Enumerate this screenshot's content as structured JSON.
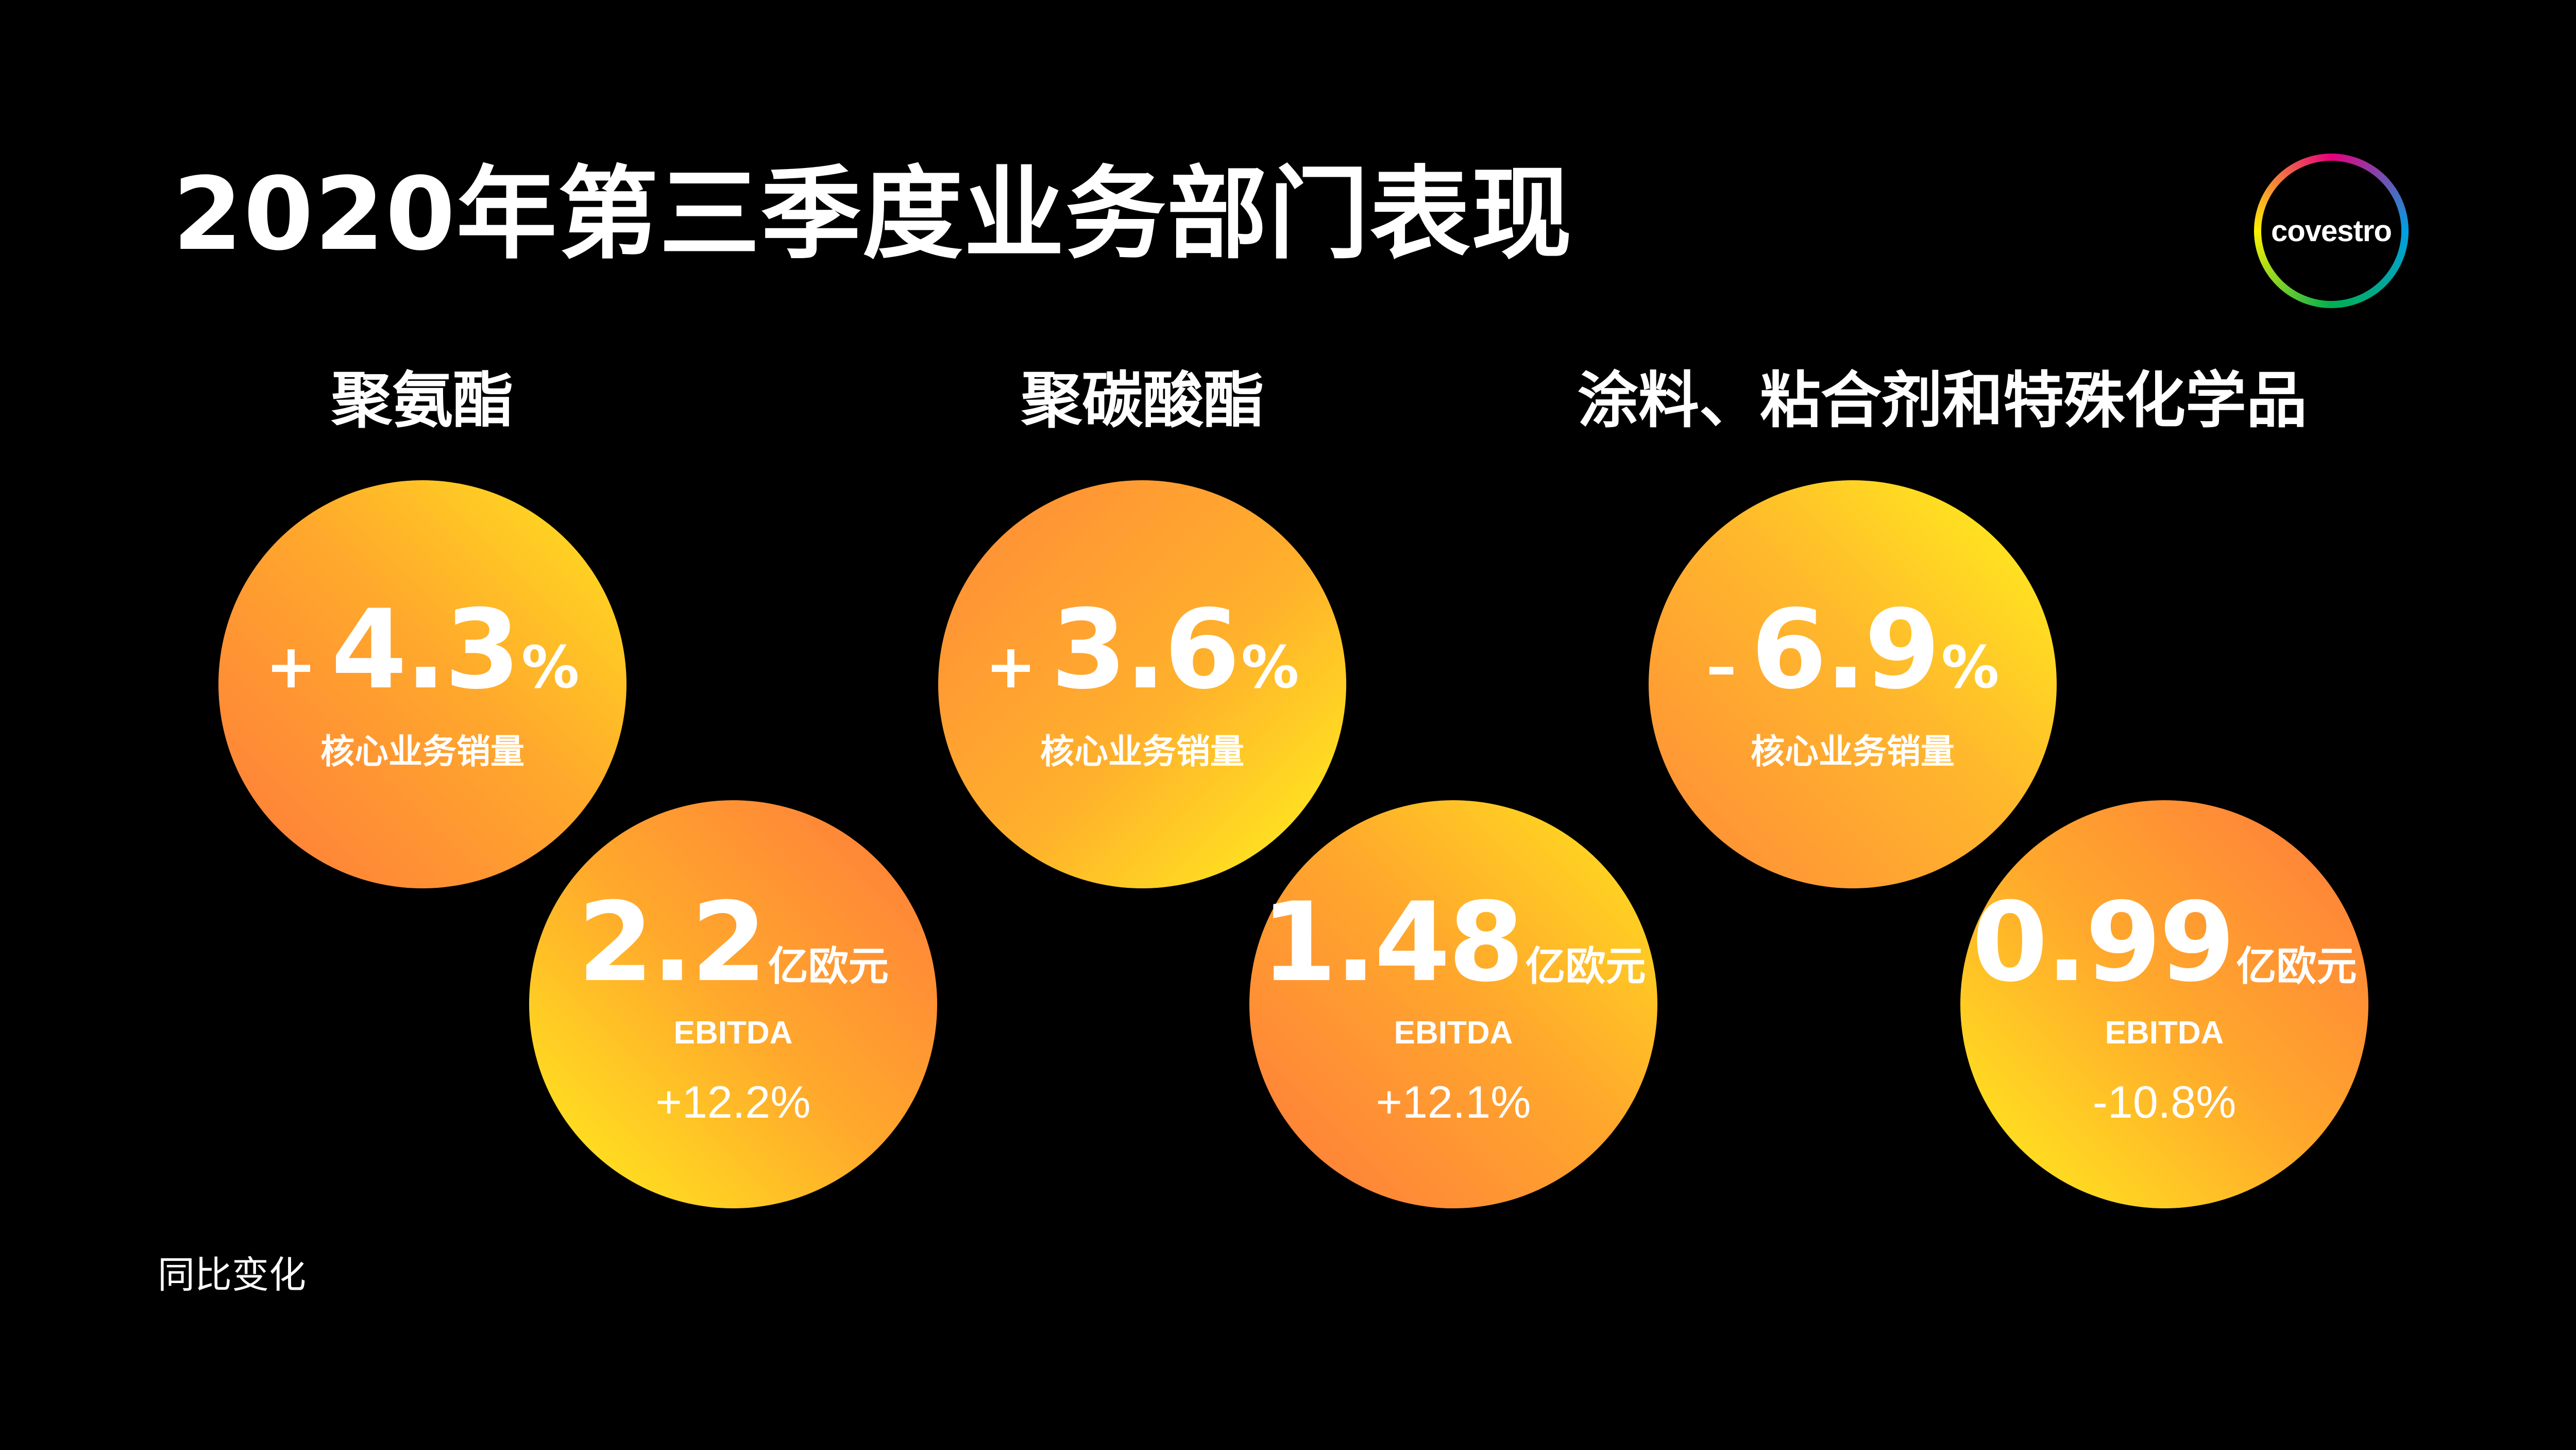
{
  "title": "2020年第三季度业务部门表现",
  "logo": {
    "text": "covestro"
  },
  "segments": [
    {
      "name": "聚氨酯",
      "sales": {
        "sign": "+",
        "value": "4.3",
        "unit": "%",
        "label": "核心业务销量"
      },
      "ebitda": {
        "value": "2.2",
        "unit": "亿欧元",
        "label": "EBITDA",
        "change": "+12.2%"
      }
    },
    {
      "name": "聚碳酸酯",
      "sales": {
        "sign": "+",
        "value": "3.6",
        "unit": "%",
        "label": "核心业务销量"
      },
      "ebitda": {
        "value": "1.48",
        "unit": "亿欧元",
        "label": "EBITDA",
        "change": "+12.1%"
      }
    },
    {
      "name": "涂料、粘合剂和特殊化学品",
      "sales": {
        "sign": "–",
        "value": "6.9",
        "unit": "%",
        "label": "核心业务销量"
      },
      "ebitda": {
        "value": "0.99",
        "unit": "亿欧元",
        "label": "EBITDA",
        "change": "-10.8%"
      }
    }
  ],
  "footnote": "同比变化",
  "colors": {
    "background": "#000000",
    "text": "#ffffff",
    "gradient_orange": "#ff7a3c",
    "gradient_yellow": "#fff01c"
  }
}
